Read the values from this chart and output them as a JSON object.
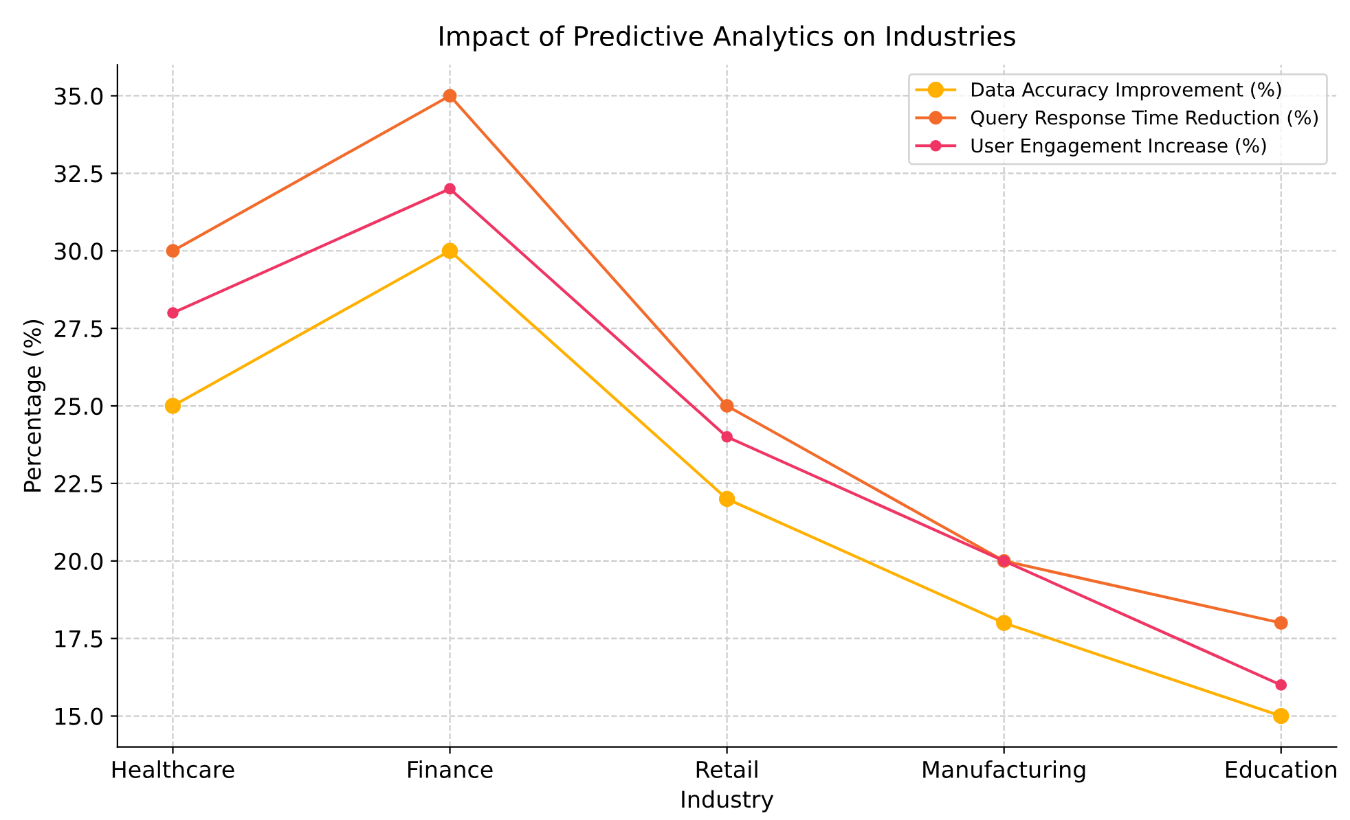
{
  "chart_data": {
    "type": "line",
    "title": "Impact of Predictive Analytics on Industries",
    "xlabel": "Industry",
    "ylabel": "Percentage (%)",
    "categories": [
      "Healthcare",
      "Finance",
      "Retail",
      "Manufacturing",
      "Education"
    ],
    "series": [
      {
        "name": "Data Accuracy Improvement (%)",
        "color": "#ffb000",
        "values": [
          25,
          30,
          22,
          18,
          15
        ]
      },
      {
        "name": "Query Response Time Reduction (%)",
        "color": "#f26b2a",
        "values": [
          30,
          35,
          25,
          20,
          18
        ]
      },
      {
        "name": "User Engagement Increase (%)",
        "color": "#ef3563",
        "values": [
          28,
          32,
          24,
          20,
          16
        ]
      }
    ],
    "ylim": [
      14,
      36
    ],
    "yticks": [
      {
        "value": 15,
        "label": "15.0"
      },
      {
        "value": 17.5,
        "label": "17.5"
      },
      {
        "value": 20,
        "label": "20.0"
      },
      {
        "value": 22.5,
        "label": "22.5"
      },
      {
        "value": 25,
        "label": "25.0"
      },
      {
        "value": 27.5,
        "label": "27.5"
      },
      {
        "value": 30,
        "label": "30.0"
      },
      {
        "value": 32.5,
        "label": "32.5"
      },
      {
        "value": 35,
        "label": "35.0"
      }
    ],
    "grid": true,
    "legend": "top right",
    "marker": "circle",
    "line_style": "solid"
  }
}
